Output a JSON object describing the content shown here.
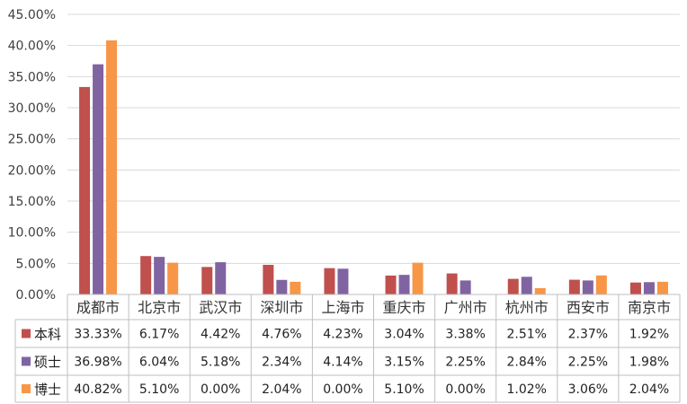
{
  "chart_data": {
    "type": "bar",
    "categories": [
      "成都市",
      "北京市",
      "武汉市",
      "深圳市",
      "上海市",
      "重庆市",
      "广州市",
      "杭州市",
      "西安市",
      "南京市"
    ],
    "series": [
      {
        "name": "本科",
        "color": "#C0504D",
        "values": [
          33.33,
          6.17,
          4.42,
          4.76,
          4.23,
          3.04,
          3.38,
          2.51,
          2.37,
          1.92
        ],
        "labels": [
          "33.33%",
          "6.17%",
          "4.42%",
          "4.76%",
          "4.23%",
          "3.04%",
          "3.38%",
          "2.51%",
          "2.37%",
          "1.92%"
        ]
      },
      {
        "name": "硕士",
        "color": "#8064A2",
        "values": [
          36.98,
          6.04,
          5.18,
          2.34,
          4.14,
          3.15,
          2.25,
          2.84,
          2.25,
          1.98
        ],
        "labels": [
          "36.98%",
          "6.04%",
          "5.18%",
          "2.34%",
          "4.14%",
          "3.15%",
          "2.25%",
          "2.84%",
          "2.25%",
          "1.98%"
        ]
      },
      {
        "name": "博士",
        "color": "#F79646",
        "values": [
          40.82,
          5.1,
          0.0,
          2.04,
          0.0,
          5.1,
          0.0,
          1.02,
          3.06,
          2.04
        ],
        "labels": [
          "40.82%",
          "5.10%",
          "0.00%",
          "2.04%",
          "0.00%",
          "5.10%",
          "0.00%",
          "1.02%",
          "3.06%",
          "2.04%"
        ]
      }
    ],
    "yticks": [
      "0.00%",
      "5.00%",
      "10.00%",
      "15.00%",
      "20.00%",
      "25.00%",
      "30.00%",
      "35.00%",
      "40.00%",
      "45.00%"
    ],
    "ylim": [
      0,
      45
    ],
    "grid": true,
    "legend": "data-table"
  }
}
